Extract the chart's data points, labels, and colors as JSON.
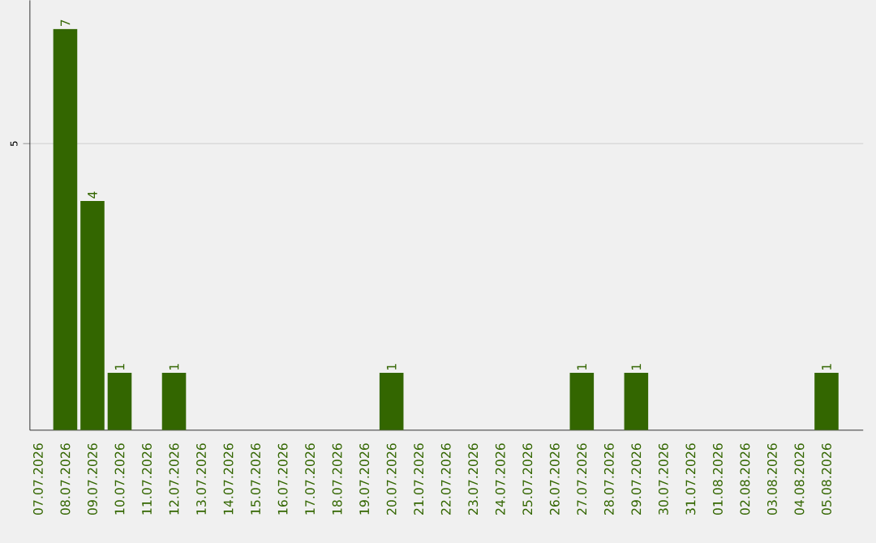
{
  "chart_data": {
    "type": "bar",
    "categories": [
      "07.07.2026",
      "08.07.2026",
      "09.07.2026",
      "10.07.2026",
      "11.07.2026",
      "12.07.2026",
      "13.07.2026",
      "14.07.2026",
      "15.07.2026",
      "16.07.2026",
      "17.07.2026",
      "18.07.2026",
      "19.07.2026",
      "20.07.2026",
      "21.07.2026",
      "22.07.2026",
      "23.07.2026",
      "24.07.2026",
      "25.07.2026",
      "26.07.2026",
      "27.07.2026",
      "28.07.2026",
      "29.07.2026",
      "30.07.2026",
      "31.07.2026",
      "01.08.2026",
      "02.08.2026",
      "03.08.2026",
      "04.08.2026",
      "05.08.2026"
    ],
    "values": [
      0,
      7,
      4,
      1,
      0,
      1,
      0,
      0,
      0,
      0,
      0,
      0,
      0,
      1,
      0,
      0,
      0,
      0,
      0,
      0,
      1,
      0,
      1,
      0,
      0,
      0,
      0,
      0,
      0,
      1
    ],
    "value_labels": [
      null,
      "7",
      "4",
      "1",
      null,
      "1",
      null,
      null,
      null,
      null,
      null,
      null,
      null,
      "1",
      null,
      null,
      null,
      null,
      null,
      null,
      "1",
      null,
      "1",
      null,
      null,
      null,
      null,
      null,
      null,
      "1"
    ],
    "color": "#336600",
    "ylim": [
      0,
      7.5
    ],
    "yticks": [
      5
    ],
    "grid": "y"
  }
}
